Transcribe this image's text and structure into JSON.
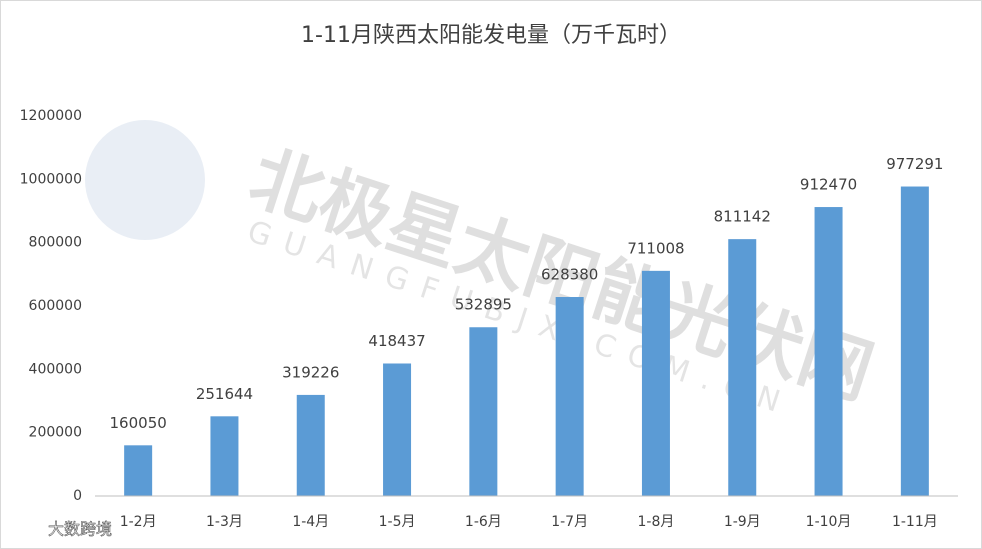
{
  "chart_data": {
    "type": "bar",
    "title": "1-11月陕西太阳能发电量（万千瓦时）",
    "categories": [
      "1-2月",
      "1-3月",
      "1-4月",
      "1-5月",
      "1-6月",
      "1-7月",
      "1-8月",
      "1-9月",
      "1-10月",
      "1-11月"
    ],
    "values": [
      160050,
      251644,
      319226,
      418437,
      532895,
      628380,
      711008,
      811142,
      912470,
      977291
    ],
    "color": "#5b9bd5",
    "ylim": [
      0,
      1200000
    ],
    "yticks": [
      0,
      200000,
      400000,
      600000,
      800000,
      1000000,
      1200000
    ],
    "grid": false,
    "watermarks": [
      "北极星太阳能光伏网",
      "GUANGFUBJX.COM.CN",
      "大数跨境"
    ]
  }
}
